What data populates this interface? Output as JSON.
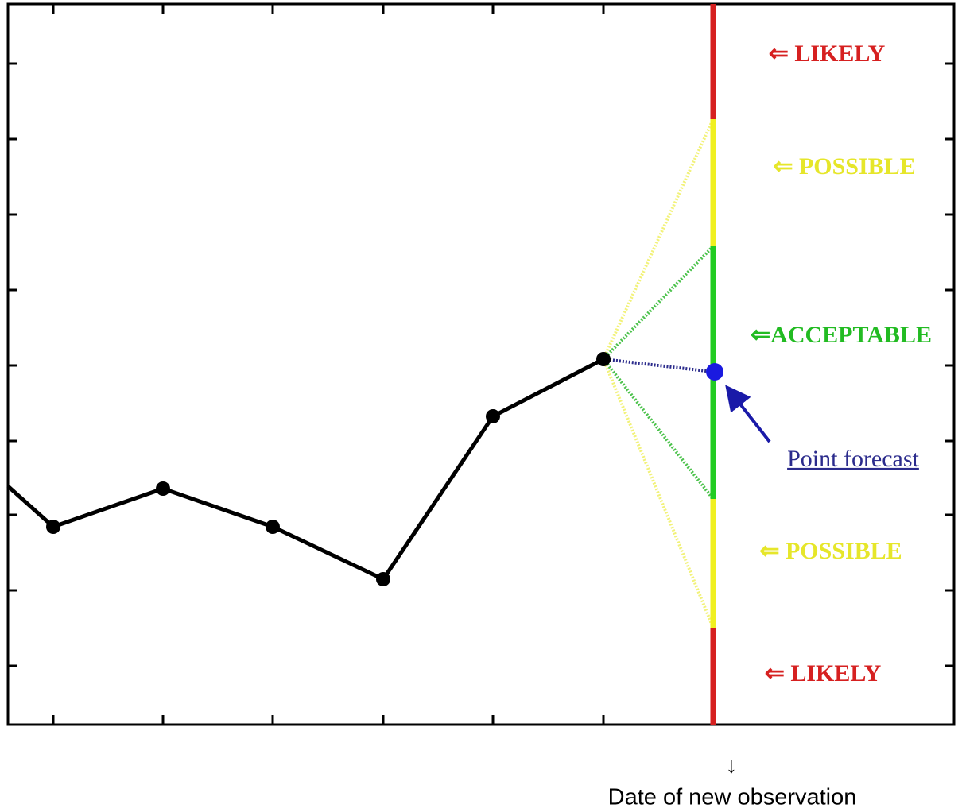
{
  "labels": {
    "likely_top": "⇐ LIKELY",
    "possible_top": "⇐ POSSIBLE",
    "acceptable": "⇐ACCEPTABLE",
    "possible_bottom": "⇐ POSSIBLE",
    "likely_bottom": "⇐ LIKELY",
    "point_forecast": "Point forecast"
  },
  "footer": {
    "arrow": "↓",
    "caption": "Date of new observation"
  }
}
